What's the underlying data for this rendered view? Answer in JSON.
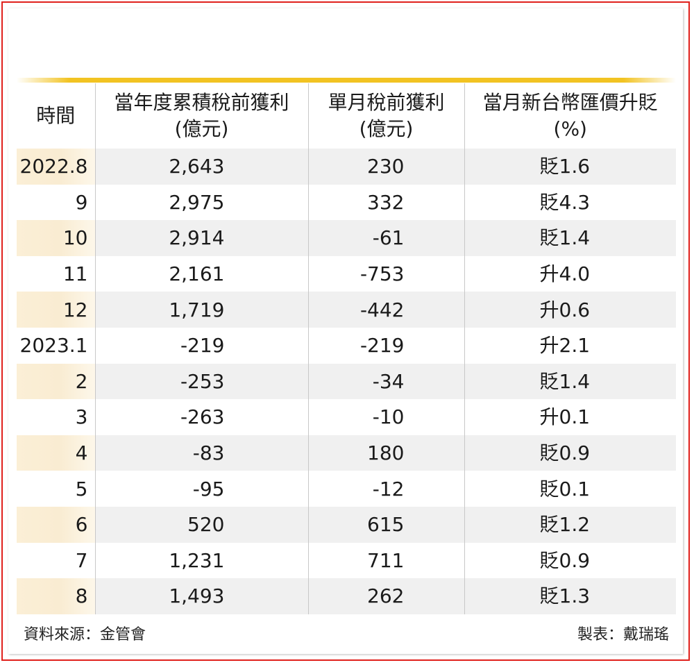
{
  "chart_data": {
    "type": "table",
    "columns": [
      {
        "key": "time",
        "label": "時間"
      },
      {
        "key": "cumulative",
        "label": "當年度累積稅前獲利",
        "unit": "(億元)"
      },
      {
        "key": "monthly",
        "label": "單月稅前獲利",
        "unit": "(億元)"
      },
      {
        "key": "fx",
        "label": "當月新台幣匯價升貶",
        "unit": "(%)"
      }
    ],
    "rows": [
      {
        "time": "2022.8",
        "cumulative": "2,643",
        "monthly": "230",
        "fx": "貶1.6"
      },
      {
        "time": "9",
        "cumulative": "2,975",
        "monthly": "332",
        "fx": "貶4.3"
      },
      {
        "time": "10",
        "cumulative": "2,914",
        "monthly": "-61",
        "fx": "貶1.4"
      },
      {
        "time": "11",
        "cumulative": "2,161",
        "monthly": "-753",
        "fx": "升4.0"
      },
      {
        "time": "12",
        "cumulative": "1,719",
        "monthly": "-442",
        "fx": "升0.6"
      },
      {
        "time": "2023.1",
        "cumulative": "-219",
        "monthly": "-219",
        "fx": "升2.1"
      },
      {
        "time": "2",
        "cumulative": "-253",
        "monthly": "-34",
        "fx": "貶1.4"
      },
      {
        "time": "3",
        "cumulative": "-263",
        "monthly": "-10",
        "fx": "升0.1"
      },
      {
        "time": "4",
        "cumulative": "-83",
        "monthly": "180",
        "fx": "貶0.9"
      },
      {
        "time": "5",
        "cumulative": "-95",
        "monthly": "-12",
        "fx": "貶0.1"
      },
      {
        "time": "6",
        "cumulative": "520",
        "monthly": "615",
        "fx": "貶1.2"
      },
      {
        "time": "7",
        "cumulative": "1,231",
        "monthly": "711",
        "fx": "貶0.9"
      },
      {
        "time": "8",
        "cumulative": "1,493",
        "monthly": "262",
        "fx": "貶1.3"
      }
    ]
  },
  "footer": {
    "source": "資料來源：金管會",
    "author": "製表：戴瑞瑤"
  },
  "colors": {
    "border": "#e0201c",
    "accent_bar": "#f2c322",
    "row_stripe": "#f0f0f0",
    "time_stripe": "#fbefd6"
  }
}
